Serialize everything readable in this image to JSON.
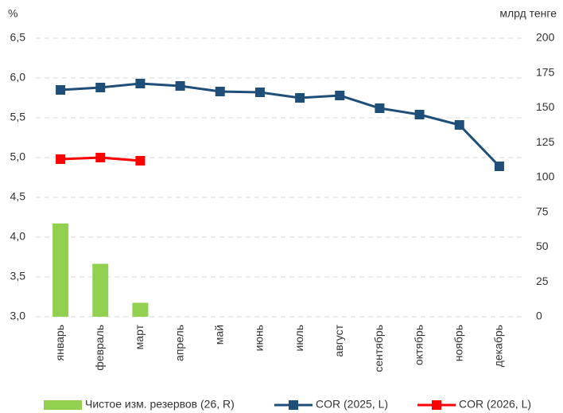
{
  "chart_data": {
    "type": "bar",
    "y_label": "%",
    "y2_label": "млрд тенге",
    "categories": [
      "январь",
      "февраль",
      "март",
      "апрель",
      "май",
      "июнь",
      "июль",
      "август",
      "сентябрь",
      "октябрь",
      "ноябрь",
      "декабрь"
    ],
    "ylim": [
      3,
      6.5
    ],
    "yticks": [
      {
        "value": 3,
        "label": "3,0"
      },
      {
        "value": 3.5,
        "label": "3,5"
      },
      {
        "value": 4,
        "label": "4,0"
      },
      {
        "value": 4.5,
        "label": "4,5"
      },
      {
        "value": 5,
        "label": "5,0"
      },
      {
        "value": 5.5,
        "label": "5,5"
      },
      {
        "value": 6,
        "label": "6,0"
      },
      {
        "value": 6.5,
        "label": "6,5"
      }
    ],
    "y2lim": [
      0,
      200
    ],
    "y2ticks": [
      0,
      25,
      50,
      75,
      100,
      125,
      150,
      175,
      200
    ],
    "grid": true,
    "legend": "bottom",
    "series": [
      {
        "name": "Чистое изм. резервов (26, R)",
        "type": "bar",
        "axis": "y2",
        "color": "#92d050",
        "values": [
          67,
          38,
          10,
          null,
          null,
          null,
          null,
          null,
          null,
          null,
          null,
          null
        ]
      },
      {
        "name": "COR (2025, L)",
        "type": "line",
        "color": "#1f4e79",
        "values": [
          5.85,
          5.88,
          5.93,
          5.9,
          5.83,
          5.82,
          5.75,
          5.78,
          5.62,
          5.54,
          5.41,
          4.89
        ]
      },
      {
        "name": "COR (2026, L)",
        "type": "line",
        "color": "#ff0000",
        "values": [
          4.98,
          5.0,
          4.96,
          null,
          null,
          null,
          null,
          null,
          null,
          null,
          null,
          null
        ]
      }
    ]
  }
}
